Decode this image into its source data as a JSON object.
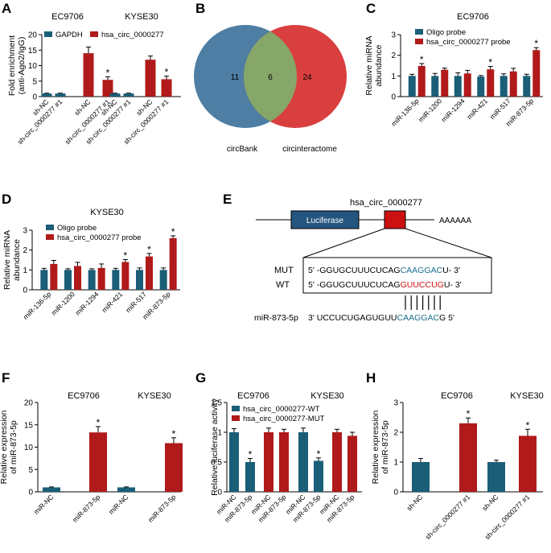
{
  "colors": {
    "teal": "#1b5e77",
    "red": "#b01a1a",
    "venn_blue": "#4e7ea3",
    "venn_red": "#d93f3f",
    "venn_overlap": "#86a66a",
    "box_blue": "#24557e",
    "box_red": "#cc1111"
  },
  "chart_data": [
    {
      "panel": "A",
      "type": "bar",
      "ylabel_lines": [
        "Fold enrichment",
        "(anti-Ago2/IgG)"
      ],
      "ylim": [
        0,
        20
      ],
      "yticks": [
        0,
        5,
        10,
        15,
        20
      ],
      "legend": [
        "GAPDH",
        "hsa_circ_0000277"
      ],
      "groups": [
        {
          "title": "EC9706",
          "categories": [
            "sh-NC",
            "sh-circ_0000277 #1",
            "sh-NC",
            "sh-circ_0000277 #1"
          ],
          "series": [
            0,
            0,
            1,
            1
          ],
          "values": [
            1.0,
            1.0,
            14.0,
            5.4
          ],
          "errors": [
            0.1,
            0.1,
            2.0,
            1.0
          ],
          "stars": [
            false,
            false,
            false,
            true
          ]
        },
        {
          "title": "KYSE30",
          "categories": [
            "sh-NC",
            "sh-circ_0000277 #1",
            "sh-NC",
            "sh-circ_0000277 #1"
          ],
          "series": [
            0,
            0,
            1,
            1
          ],
          "values": [
            1.0,
            1.0,
            11.9,
            5.6
          ],
          "errors": [
            0.1,
            0.1,
            1.2,
            1.0
          ],
          "stars": [
            false,
            false,
            false,
            true
          ]
        }
      ]
    },
    {
      "panel": "C",
      "type": "bar",
      "title": "EC9706",
      "ylabel_lines": [
        "Relative miRNA",
        "abundance"
      ],
      "ylim": [
        0,
        3
      ],
      "yticks": [
        0,
        1,
        2,
        3
      ],
      "legend": [
        "Oligo probe",
        "hsa_circ_0000277 probe"
      ],
      "categories": [
        "miR-136-5p",
        "miR-1200",
        "miR-1294",
        "miR-421",
        "miR-517",
        "miR-873-5p"
      ],
      "series": [
        {
          "name": "Oligo probe",
          "values": [
            1.0,
            1.0,
            1.0,
            0.97,
            1.0,
            1.0
          ],
          "errors": [
            0.08,
            0.12,
            0.15,
            0.05,
            0.1,
            0.08
          ]
        },
        {
          "name": "hsa_circ_0000277 probe",
          "values": [
            1.48,
            1.3,
            1.12,
            1.32,
            1.22,
            2.25
          ],
          "errors": [
            0.12,
            0.08,
            0.15,
            0.14,
            0.15,
            0.12
          ]
        }
      ],
      "stars": [
        true,
        false,
        false,
        true,
        false,
        true
      ]
    },
    {
      "panel": "D",
      "type": "bar",
      "title": "KYSE30",
      "ylabel_lines": [
        "Relative miRNA",
        "abundance"
      ],
      "ylim": [
        0,
        3
      ],
      "yticks": [
        0,
        1,
        2,
        3
      ],
      "legend": [
        "Oligo probe",
        "hsa_circ_0000277 probe"
      ],
      "categories": [
        "miR-136-5p",
        "miR-1200",
        "miR-1294",
        "miR-421",
        "miR-517",
        "miR-873-5p"
      ],
      "series": [
        {
          "name": "Oligo probe",
          "values": [
            1.0,
            1.0,
            1.0,
            1.0,
            1.0,
            1.0
          ],
          "errors": [
            0.08,
            0.06,
            0.06,
            0.08,
            0.1,
            0.1
          ]
        },
        {
          "name": "hsa_circ_0000277 probe",
          "values": [
            1.3,
            1.2,
            1.1,
            1.4,
            1.68,
            2.6
          ],
          "errors": [
            0.18,
            0.18,
            0.2,
            0.12,
            0.15,
            0.12
          ]
        }
      ],
      "stars": [
        false,
        false,
        false,
        true,
        true,
        true
      ]
    },
    {
      "panel": "F",
      "type": "bar",
      "ylabel_lines": [
        "Relative expression",
        "of  miR-873-5p"
      ],
      "ylim": [
        0,
        20
      ],
      "yticks": [
        0,
        5,
        10,
        15,
        20
      ],
      "groups": [
        {
          "title": "EC9706",
          "categories": [
            "miR-NC",
            "miR-873-5p"
          ],
          "series": [
            0,
            1
          ],
          "values": [
            1.0,
            13.3
          ],
          "errors": [
            0.1,
            1.3
          ],
          "stars": [
            false,
            true
          ]
        },
        {
          "title": "KYSE30",
          "categories": [
            "miR-NC",
            "miR-873-5p"
          ],
          "series": [
            0,
            1
          ],
          "values": [
            1.0,
            10.9
          ],
          "errors": [
            0.1,
            1.2
          ],
          "stars": [
            false,
            true
          ]
        }
      ]
    },
    {
      "panel": "G",
      "type": "bar",
      "ylabel_lines": [
        "Relative luciferase activity"
      ],
      "ylim": [
        0,
        1.5
      ],
      "yticks": [
        0.0,
        0.5,
        1.0,
        1.5
      ],
      "legend": [
        "hsa_circ_0000277-WT",
        "hsa_circ_0000277-MUT"
      ],
      "groups": [
        {
          "title": "EC9706",
          "categories": [
            "miR-NC",
            "miR-873-5p",
            "miR-NC",
            "miR-873-5p"
          ],
          "series": [
            0,
            0,
            1,
            1
          ],
          "values": [
            1.0,
            0.5,
            1.0,
            1.0
          ],
          "errors": [
            0.06,
            0.06,
            0.07,
            0.05
          ],
          "stars": [
            false,
            true,
            false,
            false
          ]
        },
        {
          "title": "KYSE30",
          "categories": [
            "miR-NC",
            "miR-873-5p",
            "miR-NC",
            "miR-873-5p"
          ],
          "series": [
            0,
            0,
            1,
            1
          ],
          "values": [
            1.0,
            0.52,
            1.0,
            0.94
          ],
          "errors": [
            0.07,
            0.05,
            0.05,
            0.06
          ],
          "stars": [
            false,
            true,
            false,
            false
          ]
        }
      ]
    },
    {
      "panel": "H",
      "type": "bar",
      "ylabel_lines": [
        "Relative expression",
        "of  miR-873-5p"
      ],
      "ylim": [
        0,
        3
      ],
      "yticks": [
        0,
        1,
        2,
        3
      ],
      "groups": [
        {
          "title": "EC9706",
          "categories": [
            "sh-NC",
            "sh-circ_0000277 #1"
          ],
          "series": [
            0,
            1
          ],
          "values": [
            1.0,
            2.3
          ],
          "errors": [
            0.12,
            0.18
          ],
          "stars": [
            false,
            true
          ]
        },
        {
          "title": "KYSE30",
          "categories": [
            "sh-NC",
            "sh-circ_0000277 #1"
          ],
          "series": [
            0,
            1
          ],
          "values": [
            1.0,
            1.88
          ],
          "errors": [
            0.06,
            0.22
          ],
          "stars": [
            false,
            true
          ]
        }
      ]
    }
  ],
  "panel_labels": [
    "A",
    "B",
    "C",
    "D",
    "E",
    "F",
    "G",
    "H"
  ],
  "venn": {
    "left_label": "circBank",
    "right_label": "circinteractome",
    "left_only": "11",
    "overlap": "6",
    "right_only": "24"
  },
  "diagram_e": {
    "title": "hsa_circ_0000277",
    "luciferase": "Luciferase",
    "polyA": "AAAAAA",
    "mut_label": "MUT",
    "wt_label": "WT",
    "mut_prefix": "5' -GGUGCUUUCUCAG",
    "mut_site": "CAAGGAC",
    "mut_suffix": "U- 3'",
    "wt_prefix": "5' -GGUGCUUUCUCAG",
    "wt_site": "GUUCCUG",
    "wt_suffix": "U- 3'",
    "mir_label": "miR-873-5p",
    "mir_prefix": "3' UCCUCUGAGUGUU",
    "mir_site": "CAAGGAC",
    "mir_suffix": "G 5'"
  }
}
